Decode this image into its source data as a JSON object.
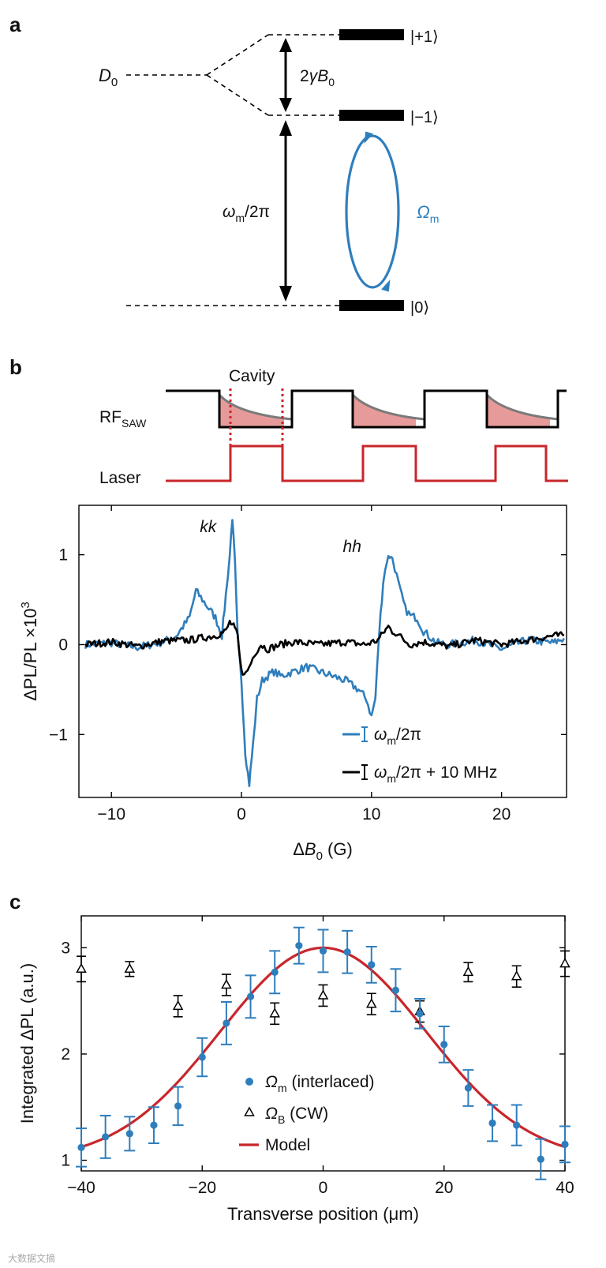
{
  "colors": {
    "blue": "#2f7ebc",
    "red": "#c8262b",
    "gray": "#7a7a7a",
    "pink": "#e79a9a",
    "black": "#000000"
  },
  "panel_a": {
    "label": "a",
    "d0_main": "D",
    "d0_sub": "0",
    "splitting_pre": "2",
    "splitting_gamma": "γB",
    "splitting_sub": "0",
    "state_plus": "|+1⟩",
    "state_minus": "|−1⟩",
    "state_zero": "|0⟩",
    "omega_m_main": "ω",
    "omega_m_sub": "m",
    "omega_m_tail": "/2π",
    "rabi_main": "Ω",
    "rabi_sub": "m"
  },
  "panel_b_timing": {
    "label": "b",
    "cavity_label": "Cavity",
    "rf_main": "RF",
    "rf_sub": "SAW",
    "laser_label": "Laser"
  },
  "chart_data": [
    {
      "type": "line",
      "panel": "b",
      "xlabel_main": "ΔB",
      "xlabel_sub": "0",
      "xlabel_unit": " (G)",
      "ylabel": "ΔPL/PL ×10",
      "ylabel_sup": "3",
      "xlim": [
        -12.5,
        25
      ],
      "ylim": [
        -1.7,
        1.55
      ],
      "xticks": [
        -10,
        0,
        10,
        20
      ],
      "xtick_labels": [
        "−10",
        "0",
        "10",
        "20"
      ],
      "yticks": [
        -1,
        0,
        1
      ],
      "ytick_labels": [
        "−1",
        "0",
        "1"
      ],
      "peak_labels": [
        {
          "text": "kk",
          "x": -3.2,
          "y": 1.25
        },
        {
          "text": "hh",
          "x": 7.8,
          "y": 1.03
        }
      ],
      "series": [
        {
          "name": "ω_m/2π",
          "legend_main": "ω",
          "legend_sub": "m",
          "legend_tail": "/2π",
          "color": "#2f7ebc",
          "x": [
            -12,
            -10,
            -8,
            -6,
            -5,
            -4,
            -3.5,
            -3,
            -2.5,
            -2,
            -1.5,
            -1.2,
            -0.9,
            -0.7,
            -0.5,
            -0.3,
            0,
            0.3,
            0.6,
            0.9,
            1.2,
            1.6,
            2,
            2.5,
            3,
            4,
            5,
            6,
            7,
            8,
            9,
            9.6,
            10,
            10.3,
            10.6,
            10.9,
            11.2,
            11.5,
            11.8,
            12.2,
            12.6,
            13,
            13.5,
            14,
            15,
            16,
            18,
            20,
            22,
            24,
            24.8
          ],
          "y": [
            0.0,
            0.02,
            -0.03,
            0.03,
            0.1,
            0.3,
            0.6,
            0.5,
            0.4,
            0.3,
            0.1,
            0.55,
            1.0,
            1.42,
            0.9,
            0.1,
            -0.4,
            -1.2,
            -1.55,
            -1.1,
            -0.6,
            -0.4,
            -0.35,
            -0.3,
            -0.35,
            -0.3,
            -0.25,
            -0.3,
            -0.35,
            -0.4,
            -0.5,
            -0.6,
            -0.8,
            -0.6,
            0.15,
            0.7,
            0.95,
            1.0,
            0.85,
            0.6,
            0.4,
            0.32,
            0.3,
            0.15,
            0.02,
            0.0,
            0.05,
            -0.05,
            0.05,
            0.02,
            0.07
          ]
        },
        {
          "name": "ω_m/2π + 10 MHz",
          "legend_main": "ω",
          "legend_sub": "m",
          "legend_tail": "/2π + 10 MHz",
          "color": "#000000",
          "x": [
            -12,
            -10,
            -8,
            -6,
            -4,
            -2,
            -1.2,
            -0.9,
            -0.6,
            -0.3,
            -0.1,
            0.2,
            0.6,
            1,
            1.5,
            2,
            3,
            4,
            6,
            8,
            9.5,
            10.5,
            11,
            11.3,
            11.6,
            12,
            12.5,
            13,
            14,
            16,
            18,
            20,
            22,
            24,
            24.8
          ],
          "y": [
            0.0,
            0.03,
            -0.02,
            0.04,
            0.05,
            0.1,
            0.15,
            0.25,
            0.2,
            0.1,
            -0.2,
            -0.35,
            -0.25,
            -0.1,
            0.0,
            -0.05,
            0.0,
            0.03,
            0.0,
            0.03,
            0.0,
            0.05,
            0.15,
            0.2,
            0.15,
            0.12,
            0.05,
            0.0,
            0.03,
            -0.02,
            0.05,
            0.0,
            0.05,
            0.1,
            0.1
          ]
        }
      ]
    },
    {
      "type": "scatter",
      "panel": "c",
      "xlabel": "Transverse position (μm)",
      "ylabel": "Integrated ΔPL (a.u.)",
      "xlim": [
        -40,
        40
      ],
      "ylim": [
        0.9,
        3.3
      ],
      "xticks": [
        -40,
        -20,
        0,
        20,
        40
      ],
      "xtick_labels": [
        "−40",
        "−20",
        "0",
        "20",
        "40"
      ],
      "yticks": [
        1,
        2,
        3
      ],
      "ytick_labels": [
        "1",
        "2",
        "3"
      ],
      "series": [
        {
          "name": "Ω_m (interlaced)",
          "legend_main": "Ω",
          "legend_sub": "m",
          "legend_tail": " (interlaced)",
          "marker": "circle",
          "color": "#2f7ebc",
          "x": [
            -40,
            -36,
            -32,
            -28,
            -24,
            -20,
            -16,
            -12,
            -8,
            -4,
            0,
            4,
            8,
            12,
            16,
            20,
            24,
            28,
            32,
            36,
            40
          ],
          "y": [
            1.12,
            1.22,
            1.25,
            1.33,
            1.51,
            1.97,
            2.29,
            2.54,
            2.77,
            3.02,
            2.97,
            2.96,
            2.84,
            2.6,
            2.38,
            2.09,
            1.68,
            1.35,
            1.33,
            1.01,
            1.15
          ],
          "err": [
            0.18,
            0.2,
            0.16,
            0.17,
            0.18,
            0.18,
            0.2,
            0.2,
            0.2,
            0.17,
            0.2,
            0.2,
            0.17,
            0.2,
            0.14,
            0.17,
            0.17,
            0.17,
            0.19,
            0.19,
            0.17
          ]
        },
        {
          "name": "Ω_B (CW)",
          "legend_main": "Ω",
          "legend_sub": "B",
          "legend_tail": " (CW)",
          "marker": "triangle",
          "color": "#000000",
          "x": [
            -40,
            -32,
            -24,
            -16,
            -8,
            0,
            8,
            16,
            24,
            32,
            40
          ],
          "y": [
            2.8,
            2.8,
            2.45,
            2.65,
            2.38,
            2.55,
            2.47,
            2.4,
            2.77,
            2.73,
            2.85
          ],
          "err": [
            0.12,
            0.07,
            0.1,
            0.1,
            0.1,
            0.1,
            0.1,
            0.1,
            0.09,
            0.1,
            0.12
          ]
        },
        {
          "name": "Model",
          "legend_main": "Model",
          "type": "line",
          "color": "#c8262b",
          "x": [
            -40,
            -36,
            -32,
            -28,
            -24,
            -20,
            -16,
            -12,
            -8,
            -4,
            0,
            4,
            8,
            12,
            16,
            20,
            24,
            28,
            32,
            36,
            40
          ],
          "y": [
            1.04,
            1.1,
            1.19,
            1.33,
            1.53,
            1.79,
            2.08,
            2.39,
            2.66,
            2.87,
            3.0,
            2.87,
            2.66,
            2.39,
            2.08,
            1.79,
            1.53,
            1.33,
            1.19,
            1.1,
            1.04
          ]
        }
      ]
    }
  ],
  "watermark": "大数据文摘"
}
